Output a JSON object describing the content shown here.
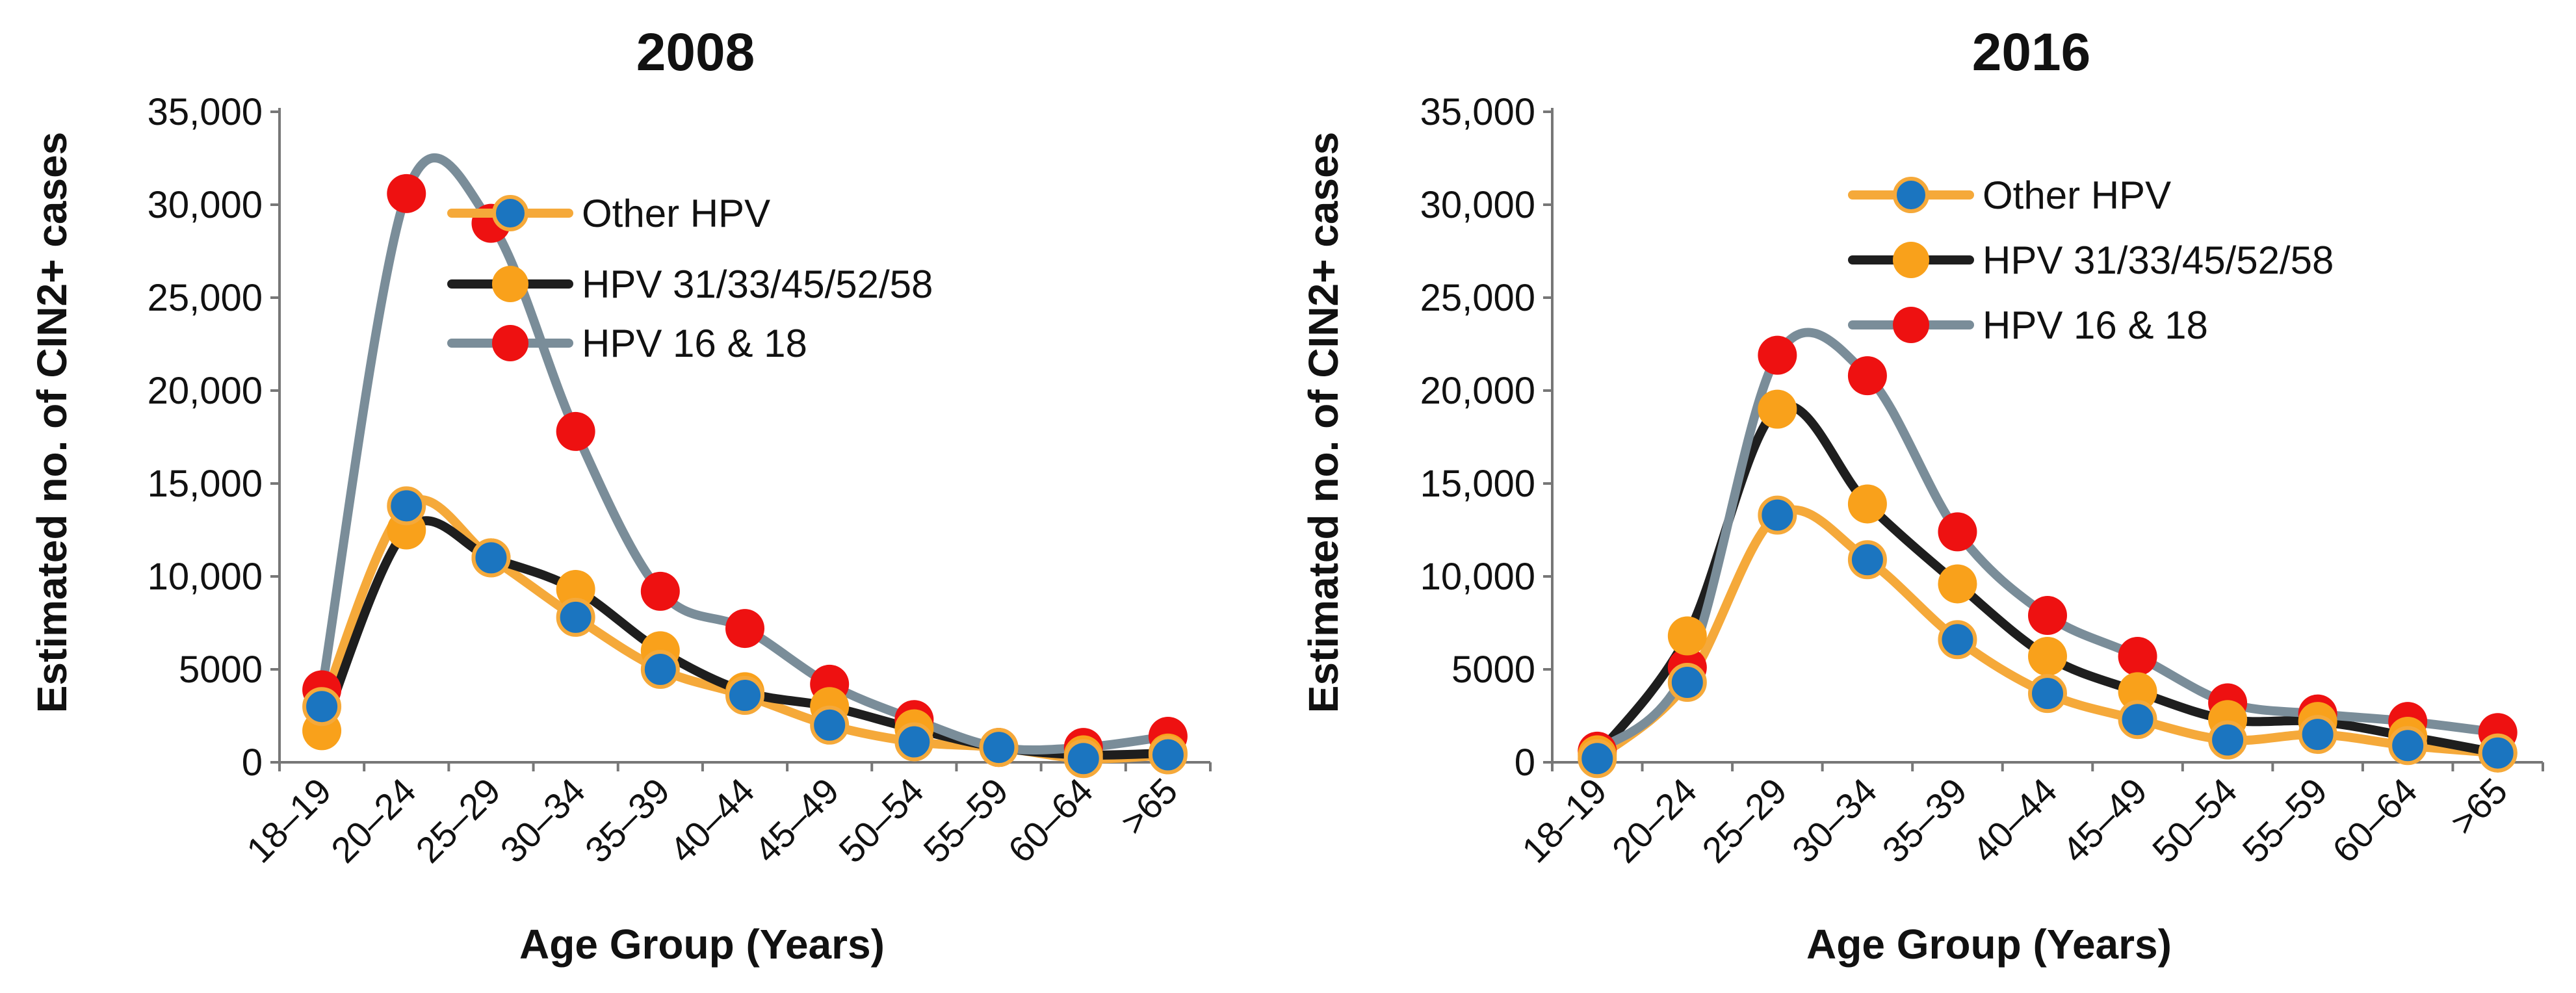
{
  "colors": {
    "other_line": "#F5A93A",
    "other_marker_fill": "#1B75C0",
    "other_marker_stroke": "#F5A93A",
    "mid_line": "#1E1E1E",
    "mid_marker_fill": "#F9A11B",
    "high_line": "#7A8D99",
    "high_marker_fill": "#EE1111",
    "axis": "#777777"
  },
  "chart_data": [
    {
      "type": "line",
      "title": "2008",
      "xlabel": "Age Group (Years)",
      "ylabel": "Estimated no. of CIN2+ cases",
      "ylim": [
        0,
        35000
      ],
      "yticks": [
        0,
        5000,
        10000,
        15000,
        20000,
        25000,
        30000,
        35000
      ],
      "ytick_labels": [
        "0",
        "5000",
        "10,000",
        "15,000",
        "20,000",
        "25,000",
        "30,000",
        "35,000"
      ],
      "categories": [
        "18–19",
        "20–24",
        "25–29",
        "30–34",
        "35–39",
        "40–44",
        "45–49",
        "50–54",
        "55–59",
        "60–64",
        ">65"
      ],
      "legend_position": "top-right",
      "series": [
        {
          "name": "Other HPV",
          "key": "other",
          "values": [
            3000,
            13800,
            11000,
            7800,
            5000,
            3600,
            2000,
            1100,
            800,
            200,
            400
          ]
        },
        {
          "name": "HPV 31/33/45/52/58",
          "key": "mid",
          "values": [
            1700,
            12500,
            11000,
            9300,
            6000,
            3800,
            3000,
            1800,
            800,
            400,
            500
          ]
        },
        {
          "name": "HPV 16 & 18",
          "key": "high",
          "values": [
            3900,
            30600,
            29000,
            17800,
            9200,
            7200,
            4200,
            2300,
            800,
            800,
            1400
          ]
        }
      ]
    },
    {
      "type": "line",
      "title": "2016",
      "xlabel": "Age Group (Years)",
      "ylabel": "Estimated no. of CIN2+ cases",
      "ylim": [
        0,
        35000
      ],
      "yticks": [
        0,
        5000,
        10000,
        15000,
        20000,
        25000,
        30000,
        35000
      ],
      "ytick_labels": [
        "0",
        "5000",
        "10,000",
        "15,000",
        "20,000",
        "25,000",
        "30,000",
        "35,000"
      ],
      "categories": [
        "18–19",
        "20–24",
        "25–29",
        "30–34",
        "35–39",
        "40–44",
        "45–49",
        "50–54",
        "55–59",
        "60–64",
        ">65"
      ],
      "legend_position": "top-right",
      "series": [
        {
          "name": "Other HPV",
          "key": "other",
          "values": [
            200,
            4300,
            13300,
            10900,
            6600,
            3700,
            2300,
            1200,
            1500,
            900,
            500
          ]
        },
        {
          "name": "HPV 31/33/45/52/58",
          "key": "mid",
          "values": [
            400,
            6800,
            19000,
            13900,
            9600,
            5700,
            3800,
            2300,
            2200,
            1400,
            500
          ]
        },
        {
          "name": "HPV 16 & 18",
          "key": "high",
          "values": [
            600,
            5100,
            21900,
            20800,
            12400,
            7900,
            5700,
            3200,
            2600,
            2200,
            1600
          ]
        }
      ]
    }
  ]
}
